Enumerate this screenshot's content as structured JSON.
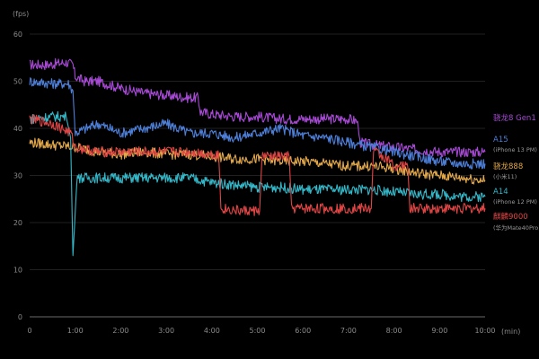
{
  "chart_data": {
    "type": "line",
    "y_unit": "(fps)",
    "x_unit": "(min)",
    "xlim": [
      0,
      10
    ],
    "ylim": [
      0,
      60
    ],
    "x_ticks": [
      "0",
      "1:00",
      "2:00",
      "3:00",
      "4:00",
      "5:00",
      "6:00",
      "7:00",
      "8:00",
      "9:00",
      "10:00"
    ],
    "y_ticks": [
      "0",
      "10",
      "20",
      "30",
      "40",
      "50",
      "60"
    ],
    "grid": "horizontal",
    "legend": "right",
    "series": [
      {
        "name": "骁龙8 Gen1",
        "sub": "",
        "color": "#a649d4",
        "x": [
          0,
          0.4,
          0.8,
          0.95,
          1.0,
          1.2,
          1.5,
          2.0,
          2.5,
          3.0,
          3.5,
          3.7,
          3.75,
          4.0,
          4.5,
          5.0,
          5.5,
          6.0,
          6.5,
          7.0,
          7.2,
          7.25,
          7.5,
          8.0,
          8.5,
          9.0,
          9.5,
          10.0
        ],
        "y": [
          53.5,
          53.5,
          54,
          53.5,
          51,
          50,
          50,
          48.5,
          47.5,
          47,
          46.5,
          46.5,
          43.5,
          43,
          42.5,
          42.5,
          42,
          42,
          42,
          42,
          41.5,
          37,
          36.5,
          36,
          35.5,
          35,
          35,
          35
        ]
      },
      {
        "name": "A15",
        "sub": "(iPhone 13 PM)",
        "color": "#4d7fd9",
        "x": [
          0,
          0.5,
          0.85,
          0.95,
          1.0,
          1.5,
          2.0,
          2.5,
          3.0,
          3.5,
          4.0,
          4.5,
          5.0,
          5.5,
          6.0,
          6.5,
          7.0,
          7.5,
          8.0,
          8.5,
          9.0,
          9.5,
          10.0
        ],
        "y": [
          50,
          49.5,
          49.5,
          48,
          39,
          41,
          39,
          40,
          41,
          39,
          39,
          38,
          39,
          40,
          38.5,
          38,
          37,
          36,
          35,
          34,
          33,
          32.5,
          32.5
        ]
      },
      {
        "name": "骁龙888",
        "sub": "(小米11)",
        "color": "#e2a84a",
        "x": [
          0,
          0.5,
          1.0,
          1.5,
          2.0,
          2.5,
          3.0,
          3.5,
          4.0,
          4.5,
          5.0,
          5.5,
          6.0,
          6.5,
          7.0,
          7.5,
          8.0,
          8.5,
          9.0,
          9.5,
          10.0
        ],
        "y": [
          37,
          36.5,
          36,
          35,
          34.5,
          35,
          34.5,
          34.5,
          34,
          33.5,
          33.5,
          33,
          33,
          32.5,
          32,
          32,
          31.5,
          30.5,
          30,
          29.5,
          29
        ]
      },
      {
        "name": "A14",
        "sub": "(iPhone 12 PM)",
        "color": "#33b8c9",
        "x": [
          0,
          0.5,
          0.8,
          0.9,
          0.95,
          1.05,
          1.1,
          1.5,
          2.0,
          2.5,
          3.0,
          3.5,
          4.0,
          4.5,
          5.0,
          5.5,
          6.0,
          6.5,
          7.0,
          7.5,
          8.0,
          8.5,
          9.0,
          9.5,
          10.0
        ],
        "y": [
          42,
          42.5,
          42.5,
          38,
          13,
          31,
          29.5,
          29.5,
          29.5,
          29.5,
          29.5,
          29.5,
          28.5,
          28,
          27.5,
          27.5,
          27,
          27,
          27,
          27,
          26.5,
          26,
          26,
          25.5,
          25.5
        ]
      },
      {
        "name": "麒麟9000",
        "sub": "(华为Mate40Pro)",
        "color": "#e04545",
        "x": [
          0,
          0.5,
          0.9,
          1.0,
          1.5,
          2.0,
          2.5,
          3.0,
          3.5,
          4.0,
          4.15,
          4.2,
          4.6,
          5.05,
          5.1,
          5.7,
          5.75,
          6.0,
          6.5,
          7.5,
          7.55,
          7.6,
          7.9,
          8.0,
          8.3,
          8.35,
          9.0,
          9.5,
          10.0
        ],
        "y": [
          42,
          41,
          39,
          36,
          35,
          35,
          35,
          35,
          35,
          34.5,
          34.5,
          23,
          22.5,
          22.5,
          34,
          34,
          23,
          23,
          23,
          23,
          35,
          35,
          33,
          32,
          32,
          23,
          23,
          23,
          23
        ]
      }
    ]
  },
  "labels": [
    {
      "name": "骁龙8 Gen1",
      "sub": "",
      "color": "#a649d4"
    },
    {
      "name": "A15",
      "sub": "(iPhone 13 PM)",
      "color": "#4d7fd9"
    },
    {
      "name": "骁龙888",
      "sub": "(小米11)",
      "color": "#e2a84a"
    },
    {
      "name": "A14",
      "sub": "(iPhone 12 PM)",
      "color": "#33b8c9"
    },
    {
      "name": "麒麟9000",
      "sub": "(华为Mate40Pro)",
      "color": "#e04545"
    }
  ]
}
